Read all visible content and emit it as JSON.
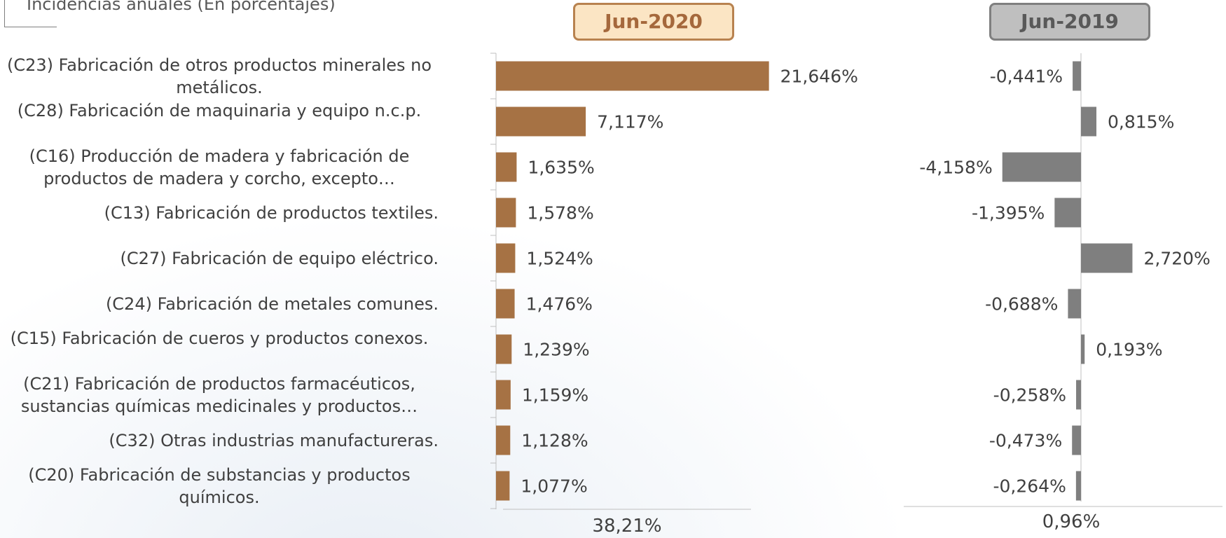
{
  "subtitle": "Incidencias anuales (En porcentajes)",
  "chart_data": {
    "type": "bar",
    "orientation": "horizontal",
    "categories": [
      "(C23) Fabricación de otros productos minerales no metálicos.",
      "(C28) Fabricación de maquinaria y equipo n.c.p.",
      "(C16) Producción de madera y fabricación de productos de madera y corcho, excepto…",
      "(C13) Fabricación de productos textiles.",
      "(C27) Fabricación de equipo eléctrico.",
      "(C24) Fabricación de metales comunes.",
      "(C15) Fabricación de cueros y productos conexos.",
      "(C21) Fabricación de productos farmacéuticos, sustancias químicas medicinales y productos…",
      "(C32) Otras industrias manufactureras.",
      "(C20) Fabricación de substancias y productos químicos."
    ],
    "series": [
      {
        "name": "Jun-2020",
        "color": "#a67244",
        "values": [
          21.646,
          7.117,
          1.635,
          1.578,
          1.524,
          1.476,
          1.239,
          1.159,
          1.128,
          1.077
        ],
        "labels": [
          "21,646%",
          "7,117%",
          "1,635%",
          "1,578%",
          "1,524%",
          "1,476%",
          "1,239%",
          "1,159%",
          "1,128%",
          "1,077%"
        ],
        "total": "38,21%"
      },
      {
        "name": "Jun-2019",
        "color": "#7f7f7f",
        "values": [
          -0.441,
          0.815,
          -4.158,
          -1.395,
          2.72,
          -0.688,
          0.193,
          -0.258,
          -0.473,
          -0.264
        ],
        "labels": [
          "-0,441%",
          "0,815%",
          "-4,158%",
          "-1,395%",
          "2,720%",
          "-0,688%",
          "0,193%",
          "-0,258%",
          "-0,473%",
          "-0,264%"
        ],
        "total": "0,96%"
      }
    ]
  }
}
